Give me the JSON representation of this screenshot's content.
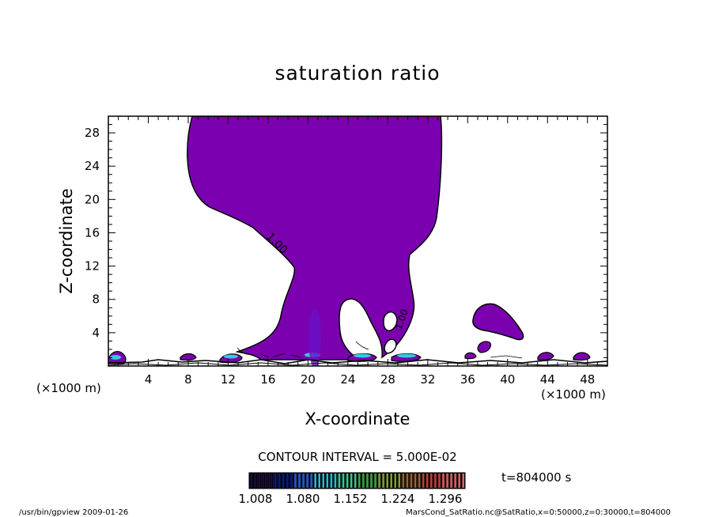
{
  "chart_data": {
    "type": "contour",
    "title": "saturation ratio",
    "xlabel": "X-coordinate",
    "ylabel": "Z-coordinate",
    "x_unit_left": "(×1000 m)",
    "x_unit_right": "(×1000 m)",
    "xlim": [
      0,
      50
    ],
    "ylim": [
      0,
      30
    ],
    "x_ticks": [
      4,
      8,
      12,
      16,
      20,
      24,
      28,
      32,
      36,
      40,
      44,
      48
    ],
    "y_ticks": [
      4,
      8,
      12,
      16,
      20,
      24,
      28
    ],
    "contour_label": "1.00",
    "contour_interval_text": "CONTOUR INTERVAL = 5.000E-02",
    "time_text": "t=804000 s",
    "colorbar_ticks": [
      "1.008",
      "1.080",
      "1.152",
      "1.224",
      "1.296"
    ],
    "colorbar_colors": [
      "#1a0a40",
      "#0a1a8c",
      "#1e5fd0",
      "#2bb8d8",
      "#38c890",
      "#3aa83a",
      "#7fa030",
      "#a06030",
      "#c04030",
      "#e06060"
    ],
    "fill_color": "#7b00b0",
    "footer_left": "/usr/bin/gpview  2009-01-26",
    "footer_right": "MarsCond_SatRatio.nc@SatRatio,x=0:50000,z=0:30000,t=804000"
  }
}
